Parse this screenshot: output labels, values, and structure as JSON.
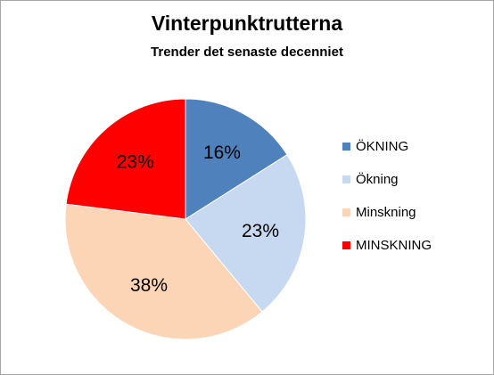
{
  "chart_data": {
    "type": "pie",
    "title": "Vinterpunktrutterna",
    "subtitle": "Trender det senaste decenniet",
    "categories": [
      "ÖKNING",
      "Ökning",
      "Minskning",
      "MINSKNING"
    ],
    "values": [
      16,
      23,
      38,
      23
    ],
    "labels": [
      "16%",
      "23%",
      "38%",
      "23%"
    ],
    "colors": [
      "#4f81bd",
      "#c6d9f1",
      "#fbd5b5",
      "#ff0000"
    ],
    "legend_position": "right"
  }
}
